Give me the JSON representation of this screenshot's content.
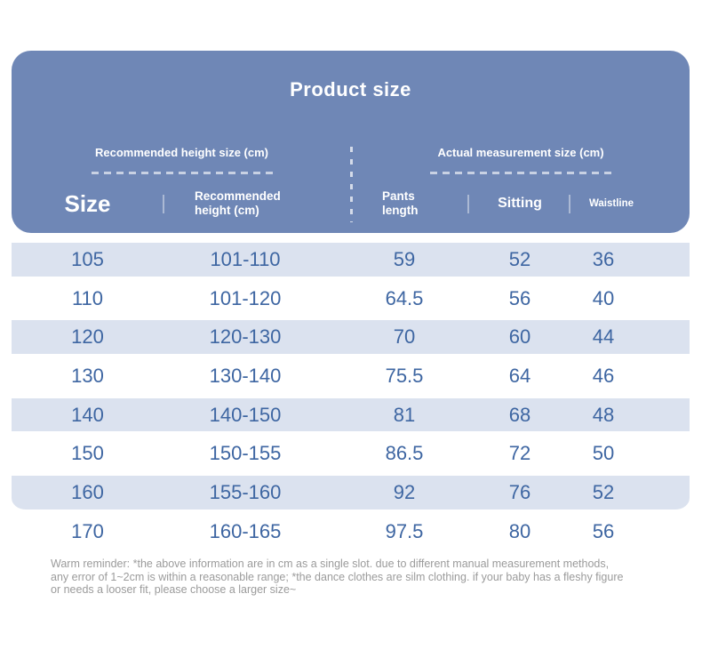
{
  "chart_data": {
    "type": "table",
    "title": "Product size",
    "units": "cm",
    "column_groups": [
      {
        "label": "Recommended height size (cm)",
        "columns": [
          "Size",
          "Recommended height (cm)"
        ]
      },
      {
        "label": "Actual measurement size (cm)",
        "columns": [
          "Pants length",
          "Sitting",
          "Waistline"
        ]
      }
    ],
    "columns": [
      "Size",
      "Recommended height (cm)",
      "Pants length",
      "Sitting",
      "Waistline"
    ],
    "rows": [
      [
        "105",
        "101-110",
        "59",
        "52",
        "36"
      ],
      [
        "110",
        "101-120",
        "64.5",
        "56",
        "40"
      ],
      [
        "120",
        "120-130",
        "70",
        "60",
        "44"
      ],
      [
        "130",
        "130-140",
        "75.5",
        "64",
        "46"
      ],
      [
        "140",
        "140-150",
        "81",
        "68",
        "48"
      ],
      [
        "150",
        "150-155",
        "86.5",
        "72",
        "50"
      ],
      [
        "160",
        "155-160",
        "92",
        "76",
        "52"
      ],
      [
        "170",
        "160-165",
        "97.5",
        "80",
        "56"
      ]
    ]
  },
  "reminder": {
    "lines": [
      "Warm reminder: *the above information are in cm as a single slot. due to different manual measurement methods,",
      "any error of 1~2cm is within a reasonable range; *the dance clothes are silm clothing. if your baby has a fleshy figure",
      "or needs a looser fit, please choose a larger size~"
    ]
  },
  "colors": {
    "card_blue": "#6f87b6",
    "stripe": "#dbe2ef",
    "value_text": "#3e66a2",
    "reminder_text": "#9b9b9b",
    "on_blue": "#ffffff"
  }
}
